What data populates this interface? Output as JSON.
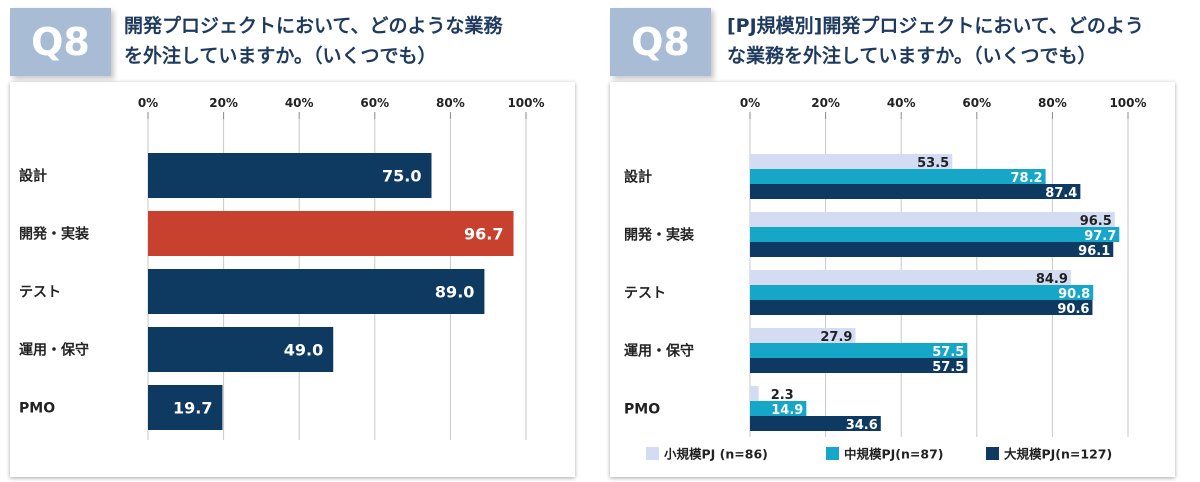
{
  "left": {
    "badge": "Q8",
    "title": "開発プロジェクトにおいて、どのような業務\nを外注していますか。（いくつでも）"
  },
  "right": {
    "badge": "Q8",
    "title": "[PJ規模別]開発プロジェクトにおいて、どのよう\nな業務を外注していますか。（いくつでも）"
  },
  "colors": {
    "navy": "#0e3a62",
    "highlight": "#c8412f",
    "small": "#d3dcf3",
    "medium": "#16a6c8",
    "large": "#0e3a62",
    "badge": "#a9bcd6"
  },
  "chart_data": [
    {
      "type": "bar",
      "orientation": "horizontal",
      "categories": [
        "設計",
        "開発・実装",
        "テスト",
        "運用・保守",
        "PMO"
      ],
      "values": [
        75.0,
        96.7,
        89.0,
        49.0,
        19.7
      ],
      "value_labels": [
        "75.0",
        "96.7",
        "89.0",
        "49.0",
        "19.7"
      ],
      "highlight_index": 1,
      "xlim": [
        0,
        100
      ],
      "x_ticks": [
        "0%",
        "20%",
        "40%",
        "60%",
        "80%",
        "100%"
      ],
      "tick_values": [
        0,
        20,
        40,
        60,
        80,
        100
      ],
      "grid": true
    },
    {
      "type": "bar",
      "orientation": "horizontal",
      "categories": [
        "設計",
        "開発・実装",
        "テスト",
        "運用・保守",
        "PMO"
      ],
      "series": [
        {
          "name": "小規模PJ (n=86)",
          "values": [
            53.5,
            96.5,
            84.9,
            27.9,
            2.3
          ],
          "value_labels": [
            "53.5",
            "96.5",
            "84.9",
            "27.9",
            "2.3"
          ]
        },
        {
          "name": "中規模PJ(n=87)",
          "values": [
            78.2,
            97.7,
            90.8,
            57.5,
            14.9
          ],
          "value_labels": [
            "78.2",
            "97.7",
            "90.8",
            "57.5",
            "14.9"
          ]
        },
        {
          "name": "大規模PJ(n=127)",
          "values": [
            87.4,
            96.1,
            90.6,
            57.5,
            34.6
          ],
          "value_labels": [
            "87.4",
            "96.1",
            "90.6",
            "57.5",
            "34.6"
          ]
        }
      ],
      "xlim": [
        0,
        100
      ],
      "x_ticks": [
        "0%",
        "20%",
        "40%",
        "60%",
        "80%",
        "100%"
      ],
      "tick_values": [
        0,
        20,
        40,
        60,
        80,
        100
      ],
      "grid": true,
      "legend_position": "bottom"
    }
  ]
}
